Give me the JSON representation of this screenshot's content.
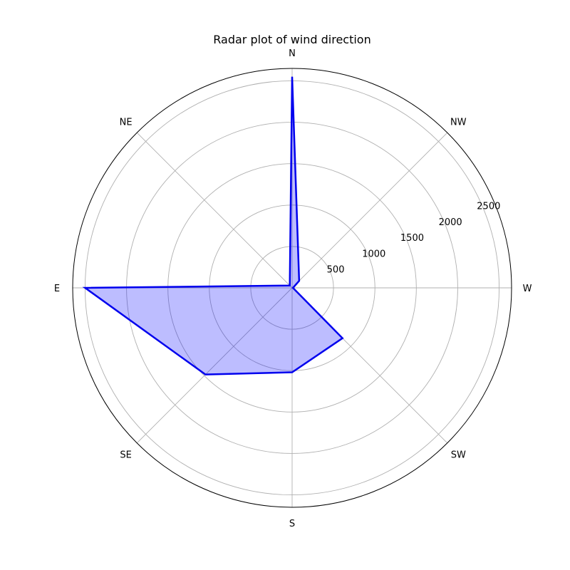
{
  "chart_data": {
    "type": "radar",
    "title": "Radar plot of wind direction",
    "categories": [
      "N",
      "NW",
      "W",
      "SW",
      "S",
      "SE",
      "E",
      "NE"
    ],
    "series": [
      {
        "values": [
          2550,
          120,
          10,
          860,
          1020,
          1480,
          2500,
          40
        ],
        "line_color": "#0000ee",
        "fill_color": "#0000ff"
      }
    ],
    "r_ticks": [
      500,
      1000,
      1500,
      2000,
      2500
    ],
    "r_tick_labels": [
      "500",
      "1000",
      "1500",
      "2000",
      "2500"
    ],
    "rlim": [
      0,
      2650
    ],
    "grid": true
  }
}
